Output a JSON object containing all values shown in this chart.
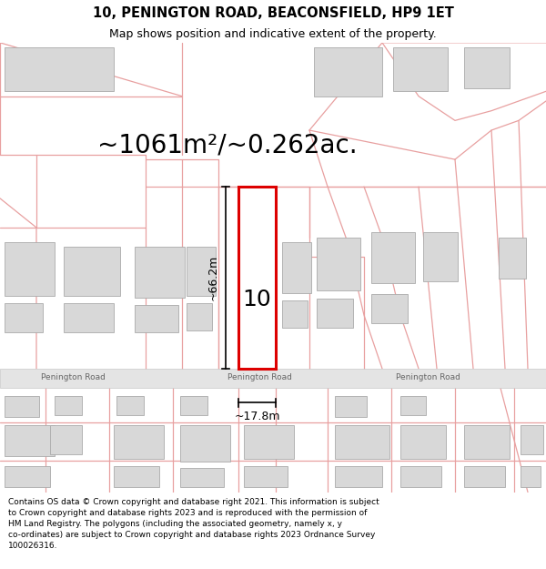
{
  "title": "10, PENINGTON ROAD, BEACONSFIELD, HP9 1ET",
  "subtitle": "Map shows position and indicative extent of the property.",
  "area_text": "~1061m²/~0.262ac.",
  "property_label": "10",
  "dim_vertical": "~66.2m",
  "dim_horizontal": "~17.8m",
  "road_label": "Penington Road",
  "copyright_text": "Contains OS data © Crown copyright and database right 2021. This information is subject\nto Crown copyright and database rights 2023 and is reproduced with the permission of\nHM Land Registry. The polygons (including the associated geometry, namely x, y\nco-ordinates) are subject to Crown copyright and database rights 2023 Ordnance Survey\n100026316.",
  "background_color": "#ffffff",
  "map_bg": "#f8f8f8",
  "road_line_color": "#e8a0a0",
  "building_fill": "#d8d8d8",
  "building_edge": "#aaaaaa",
  "property_edge_color": "#dd0000",
  "road_band_fill": "#e4e4e4",
  "road_band_edge": "#c8c8c8",
  "road_text_color": "#666666",
  "title_fontsize": 10.5,
  "subtitle_fontsize": 9,
  "area_fontsize": 20,
  "label_fontsize": 18,
  "dim_fontsize": 9,
  "road_fontsize": 6.5,
  "copyright_fontsize": 6.5
}
